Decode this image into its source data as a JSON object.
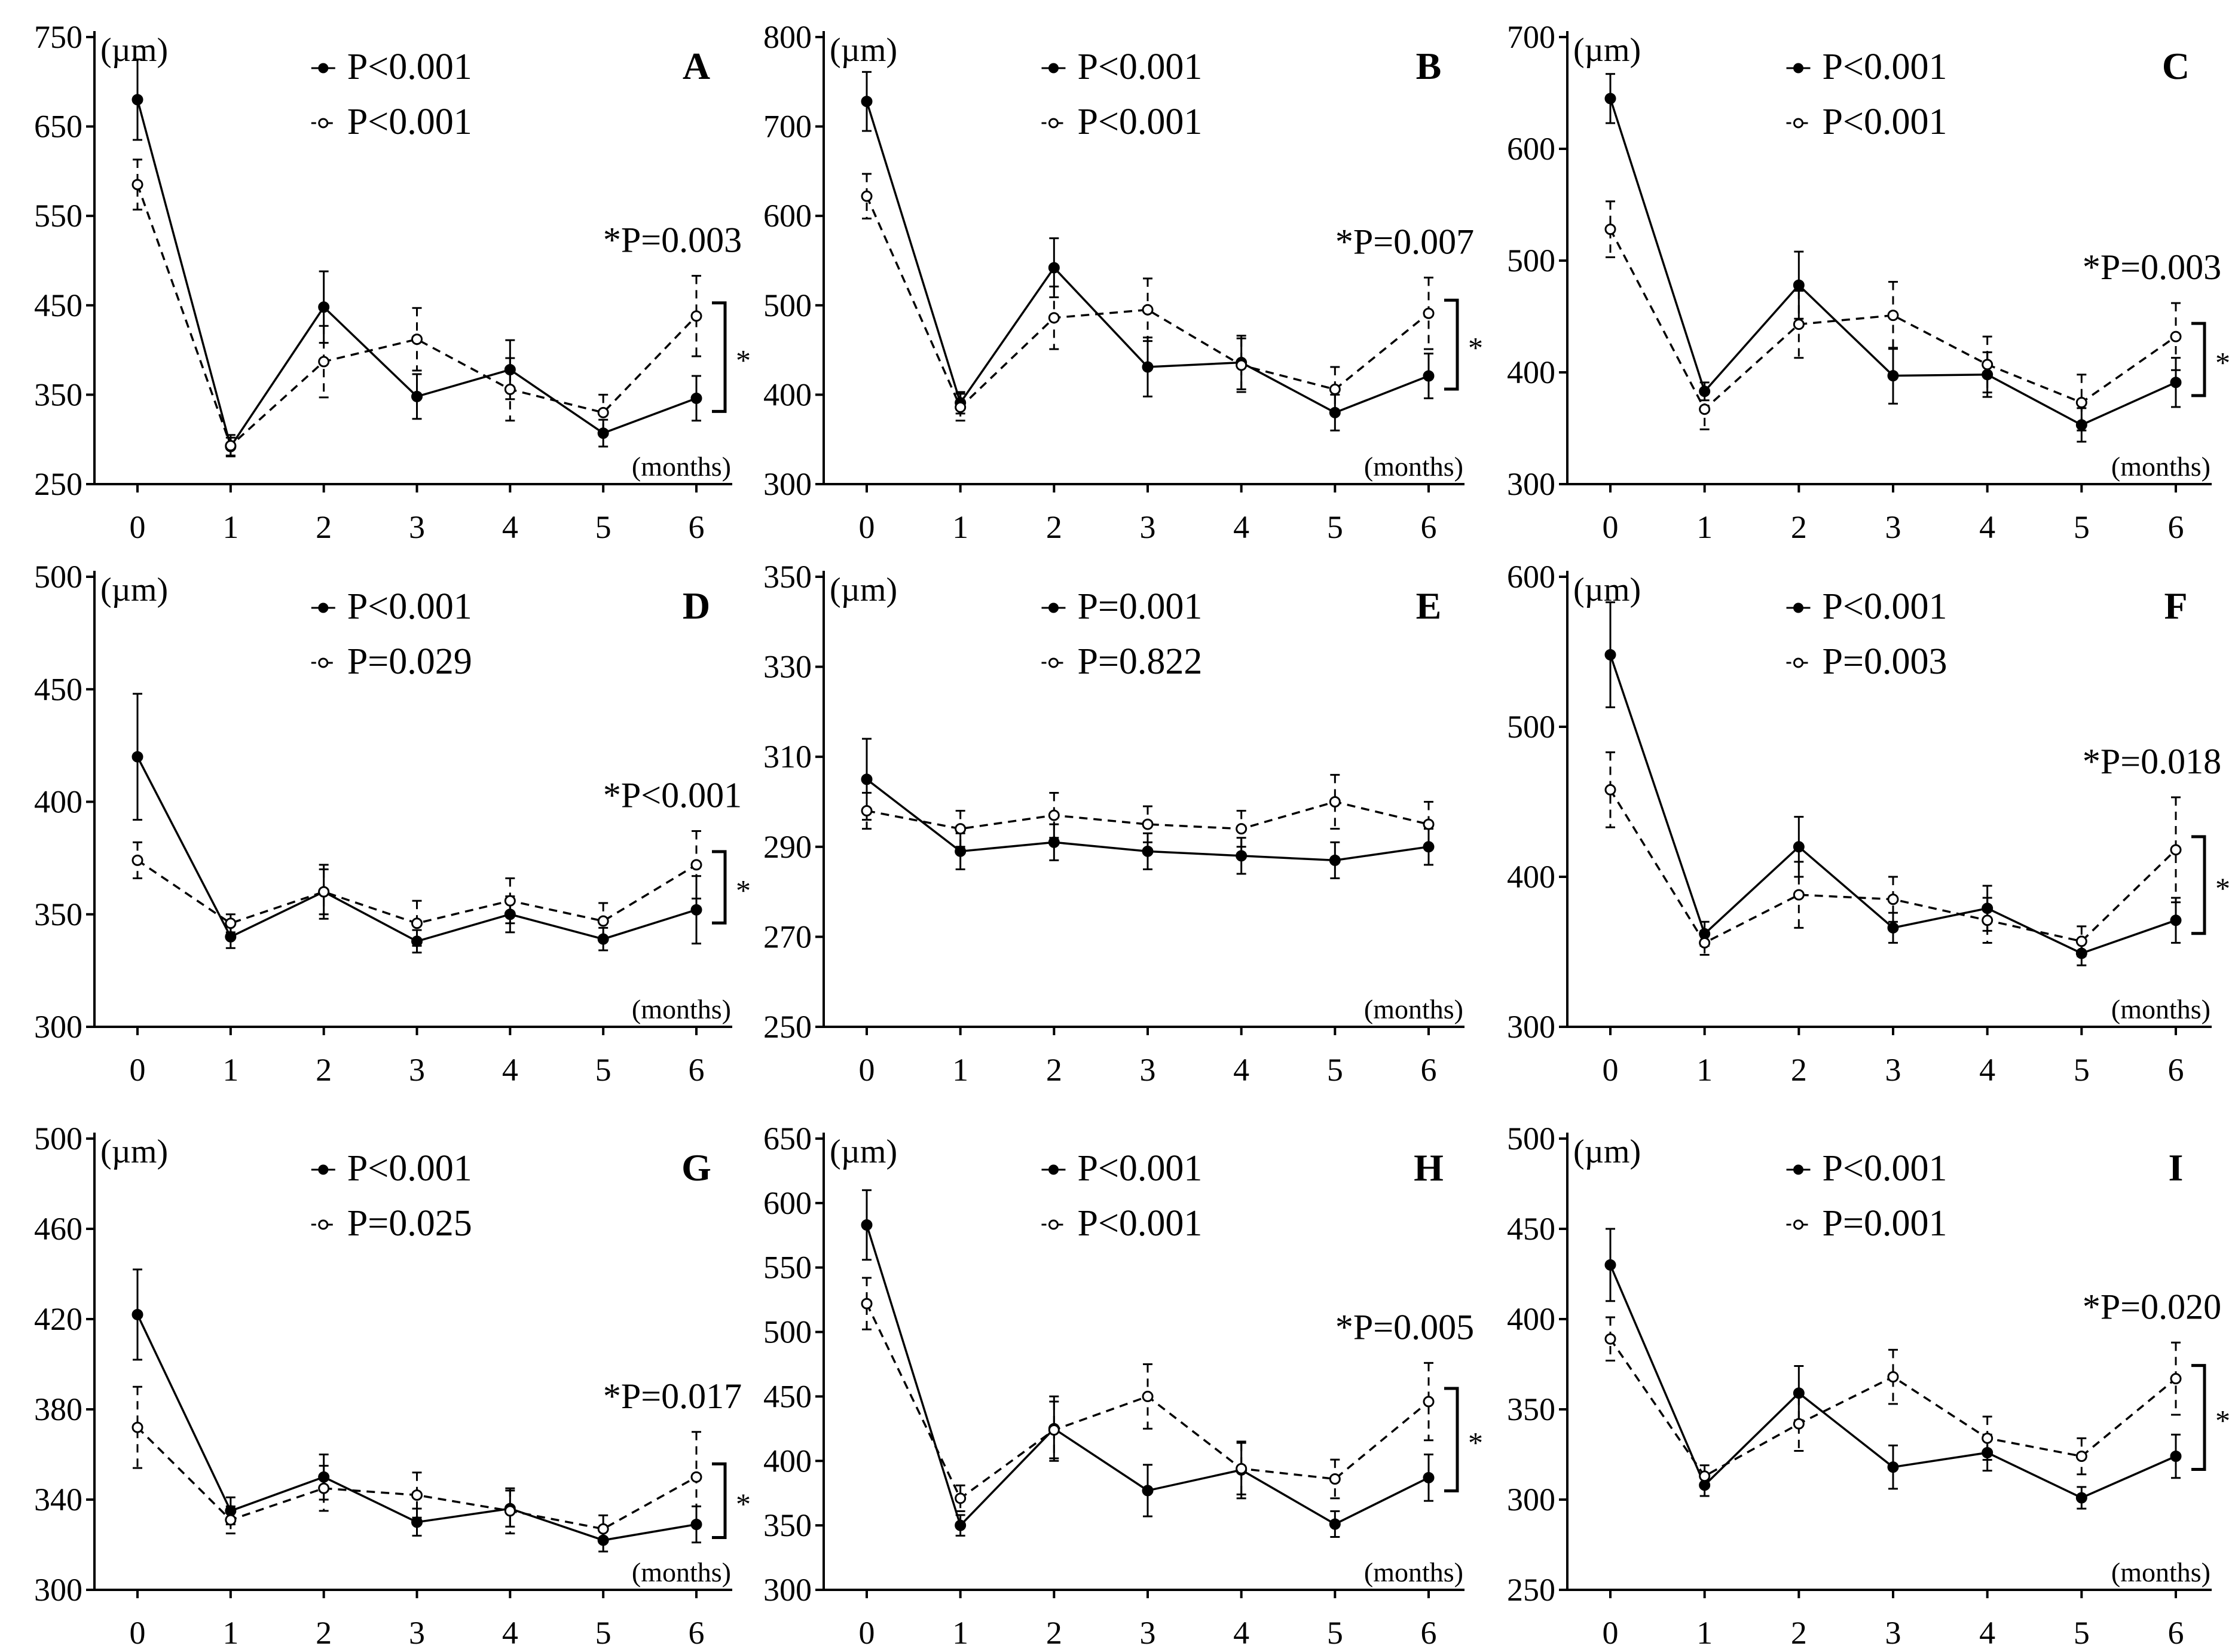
{
  "figure": {
    "months_label": "(months)",
    "unit_label": "(µm)",
    "bracket_star": "*"
  },
  "chart_data": [
    {
      "type": "line",
      "panel": "A",
      "categories": [
        "0",
        "1",
        "2",
        "3",
        "4",
        "5",
        "6"
      ],
      "ylim": [
        250,
        750
      ],
      "yticks": [
        250,
        350,
        450,
        550,
        650,
        750
      ],
      "ylabel": "(µm)",
      "xlabel": "(months)",
      "series": [
        {
          "name": "P<0.001",
          "style": "solid",
          "values": [
            680,
            292,
            448,
            348,
            378,
            307,
            346
          ],
          "errors": [
            45,
            10,
            40,
            25,
            33,
            15,
            25
          ]
        },
        {
          "name": "P<0.001",
          "style": "dashed",
          "values": [
            585,
            293,
            387,
            412,
            356,
            330,
            438
          ],
          "errors": [
            28,
            12,
            40,
            35,
            35,
            20,
            45
          ]
        }
      ],
      "annotation": "*P=0.003"
    },
    {
      "type": "line",
      "panel": "B",
      "categories": [
        "0",
        "1",
        "2",
        "3",
        "4",
        "5",
        "6"
      ],
      "ylim": [
        300,
        800
      ],
      "yticks": [
        300,
        400,
        500,
        600,
        700,
        800
      ],
      "ylabel": "(µm)",
      "xlabel": "(months)",
      "series": [
        {
          "name": "P<0.001",
          "style": "solid",
          "values": [
            728,
            391,
            542,
            431,
            436,
            380,
            421
          ],
          "errors": [
            33,
            12,
            33,
            33,
            30,
            20,
            25
          ]
        },
        {
          "name": "P<0.001",
          "style": "dashed",
          "values": [
            622,
            386,
            486,
            495,
            433,
            406,
            491
          ],
          "errors": [
            25,
            15,
            35,
            35,
            30,
            25,
            40
          ]
        }
      ],
      "annotation": "*P=0.007"
    },
    {
      "type": "line",
      "panel": "C",
      "categories": [
        "0",
        "1",
        "2",
        "3",
        "4",
        "5",
        "6"
      ],
      "ylim": [
        300,
        700
      ],
      "yticks": [
        300,
        400,
        500,
        600,
        700
      ],
      "ylabel": "(µm)",
      "xlabel": "(months)",
      "series": [
        {
          "name": "P<0.001",
          "style": "solid",
          "values": [
            645,
            383,
            478,
            397,
            398,
            353,
            391
          ],
          "errors": [
            22,
            8,
            30,
            25,
            20,
            15,
            22
          ]
        },
        {
          "name": "P<0.001",
          "style": "dashed",
          "values": [
            528,
            367,
            443,
            451,
            407,
            373,
            432
          ],
          "errors": [
            25,
            18,
            30,
            30,
            25,
            25,
            30
          ]
        }
      ],
      "annotation": "*P=0.003"
    },
    {
      "type": "line",
      "panel": "D",
      "categories": [
        "0",
        "1",
        "2",
        "3",
        "4",
        "5",
        "6"
      ],
      "ylim": [
        300,
        500
      ],
      "yticks": [
        300,
        350,
        400,
        450,
        500
      ],
      "ylabel": "(µm)",
      "xlabel": "(months)",
      "series": [
        {
          "name": "P<0.001",
          "style": "solid",
          "values": [
            420,
            340,
            360,
            338,
            350,
            339,
            352
          ],
          "errors": [
            28,
            5,
            12,
            5,
            8,
            5,
            15
          ]
        },
        {
          "name": "P=0.029",
          "style": "dashed",
          "values": [
            374,
            346,
            360,
            346,
            356,
            347,
            372
          ],
          "errors": [
            8,
            4,
            10,
            10,
            10,
            8,
            15
          ]
        }
      ],
      "annotation": "*P<0.001"
    },
    {
      "type": "line",
      "panel": "E",
      "categories": [
        "0",
        "1",
        "2",
        "3",
        "4",
        "5",
        "6"
      ],
      "ylim": [
        250,
        350
      ],
      "yticks": [
        250,
        270,
        290,
        310,
        330,
        350
      ],
      "ylabel": "(µm)",
      "xlabel": "(months)",
      "series": [
        {
          "name": "P=0.001",
          "style": "solid",
          "values": [
            305,
            289,
            291,
            289,
            288,
            287,
            290
          ],
          "errors": [
            9,
            4,
            4,
            4,
            4,
            4,
            4
          ]
        },
        {
          "name": "P=0.822",
          "style": "dashed",
          "values": [
            298,
            294,
            297,
            295,
            294,
            300,
            295
          ],
          "errors": [
            4,
            4,
            5,
            4,
            4,
            6,
            5
          ]
        }
      ]
    },
    {
      "type": "line",
      "panel": "F",
      "categories": [
        "0",
        "1",
        "2",
        "3",
        "4",
        "5",
        "6"
      ],
      "ylim": [
        300,
        600
      ],
      "yticks": [
        300,
        400,
        500,
        600
      ],
      "ylabel": "(µm)",
      "xlabel": "(months)",
      "series": [
        {
          "name": "P<0.001",
          "style": "solid",
          "values": [
            548,
            362,
            420,
            366,
            379,
            349,
            371
          ],
          "errors": [
            35,
            8,
            20,
            10,
            15,
            8,
            15
          ]
        },
        {
          "name": "P=0.003",
          "style": "dashed",
          "values": [
            458,
            356,
            388,
            385,
            371,
            357,
            418
          ],
          "errors": [
            25,
            8,
            22,
            15,
            15,
            10,
            35
          ]
        }
      ],
      "annotation": "*P=0.018"
    },
    {
      "type": "line",
      "panel": "G",
      "categories": [
        "0",
        "1",
        "2",
        "3",
        "4",
        "5",
        "6"
      ],
      "ylim": [
        300,
        500
      ],
      "yticks": [
        300,
        340,
        380,
        420,
        460,
        500
      ],
      "ylabel": "(µm)",
      "xlabel": "(months)",
      "series": [
        {
          "name": "P<0.001",
          "style": "solid",
          "values": [
            422,
            335,
            350,
            330,
            336,
            322,
            329
          ],
          "errors": [
            20,
            6,
            10,
            6,
            8,
            5,
            8
          ]
        },
        {
          "name": "P=0.025",
          "style": "dashed",
          "values": [
            372,
            331,
            345,
            342,
            335,
            327,
            350
          ],
          "errors": [
            18,
            6,
            10,
            10,
            10,
            6,
            20
          ]
        }
      ],
      "annotation": "*P=0.017"
    },
    {
      "type": "line",
      "panel": "H",
      "categories": [
        "0",
        "1",
        "2",
        "3",
        "4",
        "5",
        "6"
      ],
      "ylim": [
        300,
        650
      ],
      "yticks": [
        300,
        350,
        400,
        450,
        500,
        550,
        600,
        650
      ],
      "ylabel": "(µm)",
      "xlabel": "(months)",
      "series": [
        {
          "name": "P<0.001",
          "style": "solid",
          "values": [
            583,
            350,
            425,
            377,
            393,
            351,
            387
          ],
          "errors": [
            27,
            8,
            25,
            20,
            22,
            10,
            18
          ]
        },
        {
          "name": "P<0.001",
          "style": "dashed",
          "values": [
            522,
            371,
            424,
            450,
            394,
            386,
            446
          ],
          "errors": [
            20,
            10,
            22,
            25,
            20,
            15,
            30
          ]
        }
      ],
      "annotation": "*P=0.005"
    },
    {
      "type": "line",
      "panel": "I",
      "categories": [
        "0",
        "1",
        "2",
        "3",
        "4",
        "5",
        "6"
      ],
      "ylim": [
        250,
        500
      ],
      "yticks": [
        250,
        300,
        350,
        400,
        450,
        500
      ],
      "ylabel": "(µm)",
      "xlabel": "(months)",
      "series": [
        {
          "name": "P<0.001",
          "style": "solid",
          "values": [
            430,
            308,
            359,
            318,
            326,
            301,
            324
          ],
          "errors": [
            20,
            6,
            15,
            12,
            10,
            6,
            12
          ]
        },
        {
          "name": "P=0.001",
          "style": "dashed",
          "values": [
            389,
            313,
            342,
            368,
            334,
            324,
            367
          ],
          "errors": [
            12,
            6,
            15,
            15,
            12,
            10,
            20
          ]
        }
      ],
      "annotation": "*P=0.020"
    }
  ]
}
